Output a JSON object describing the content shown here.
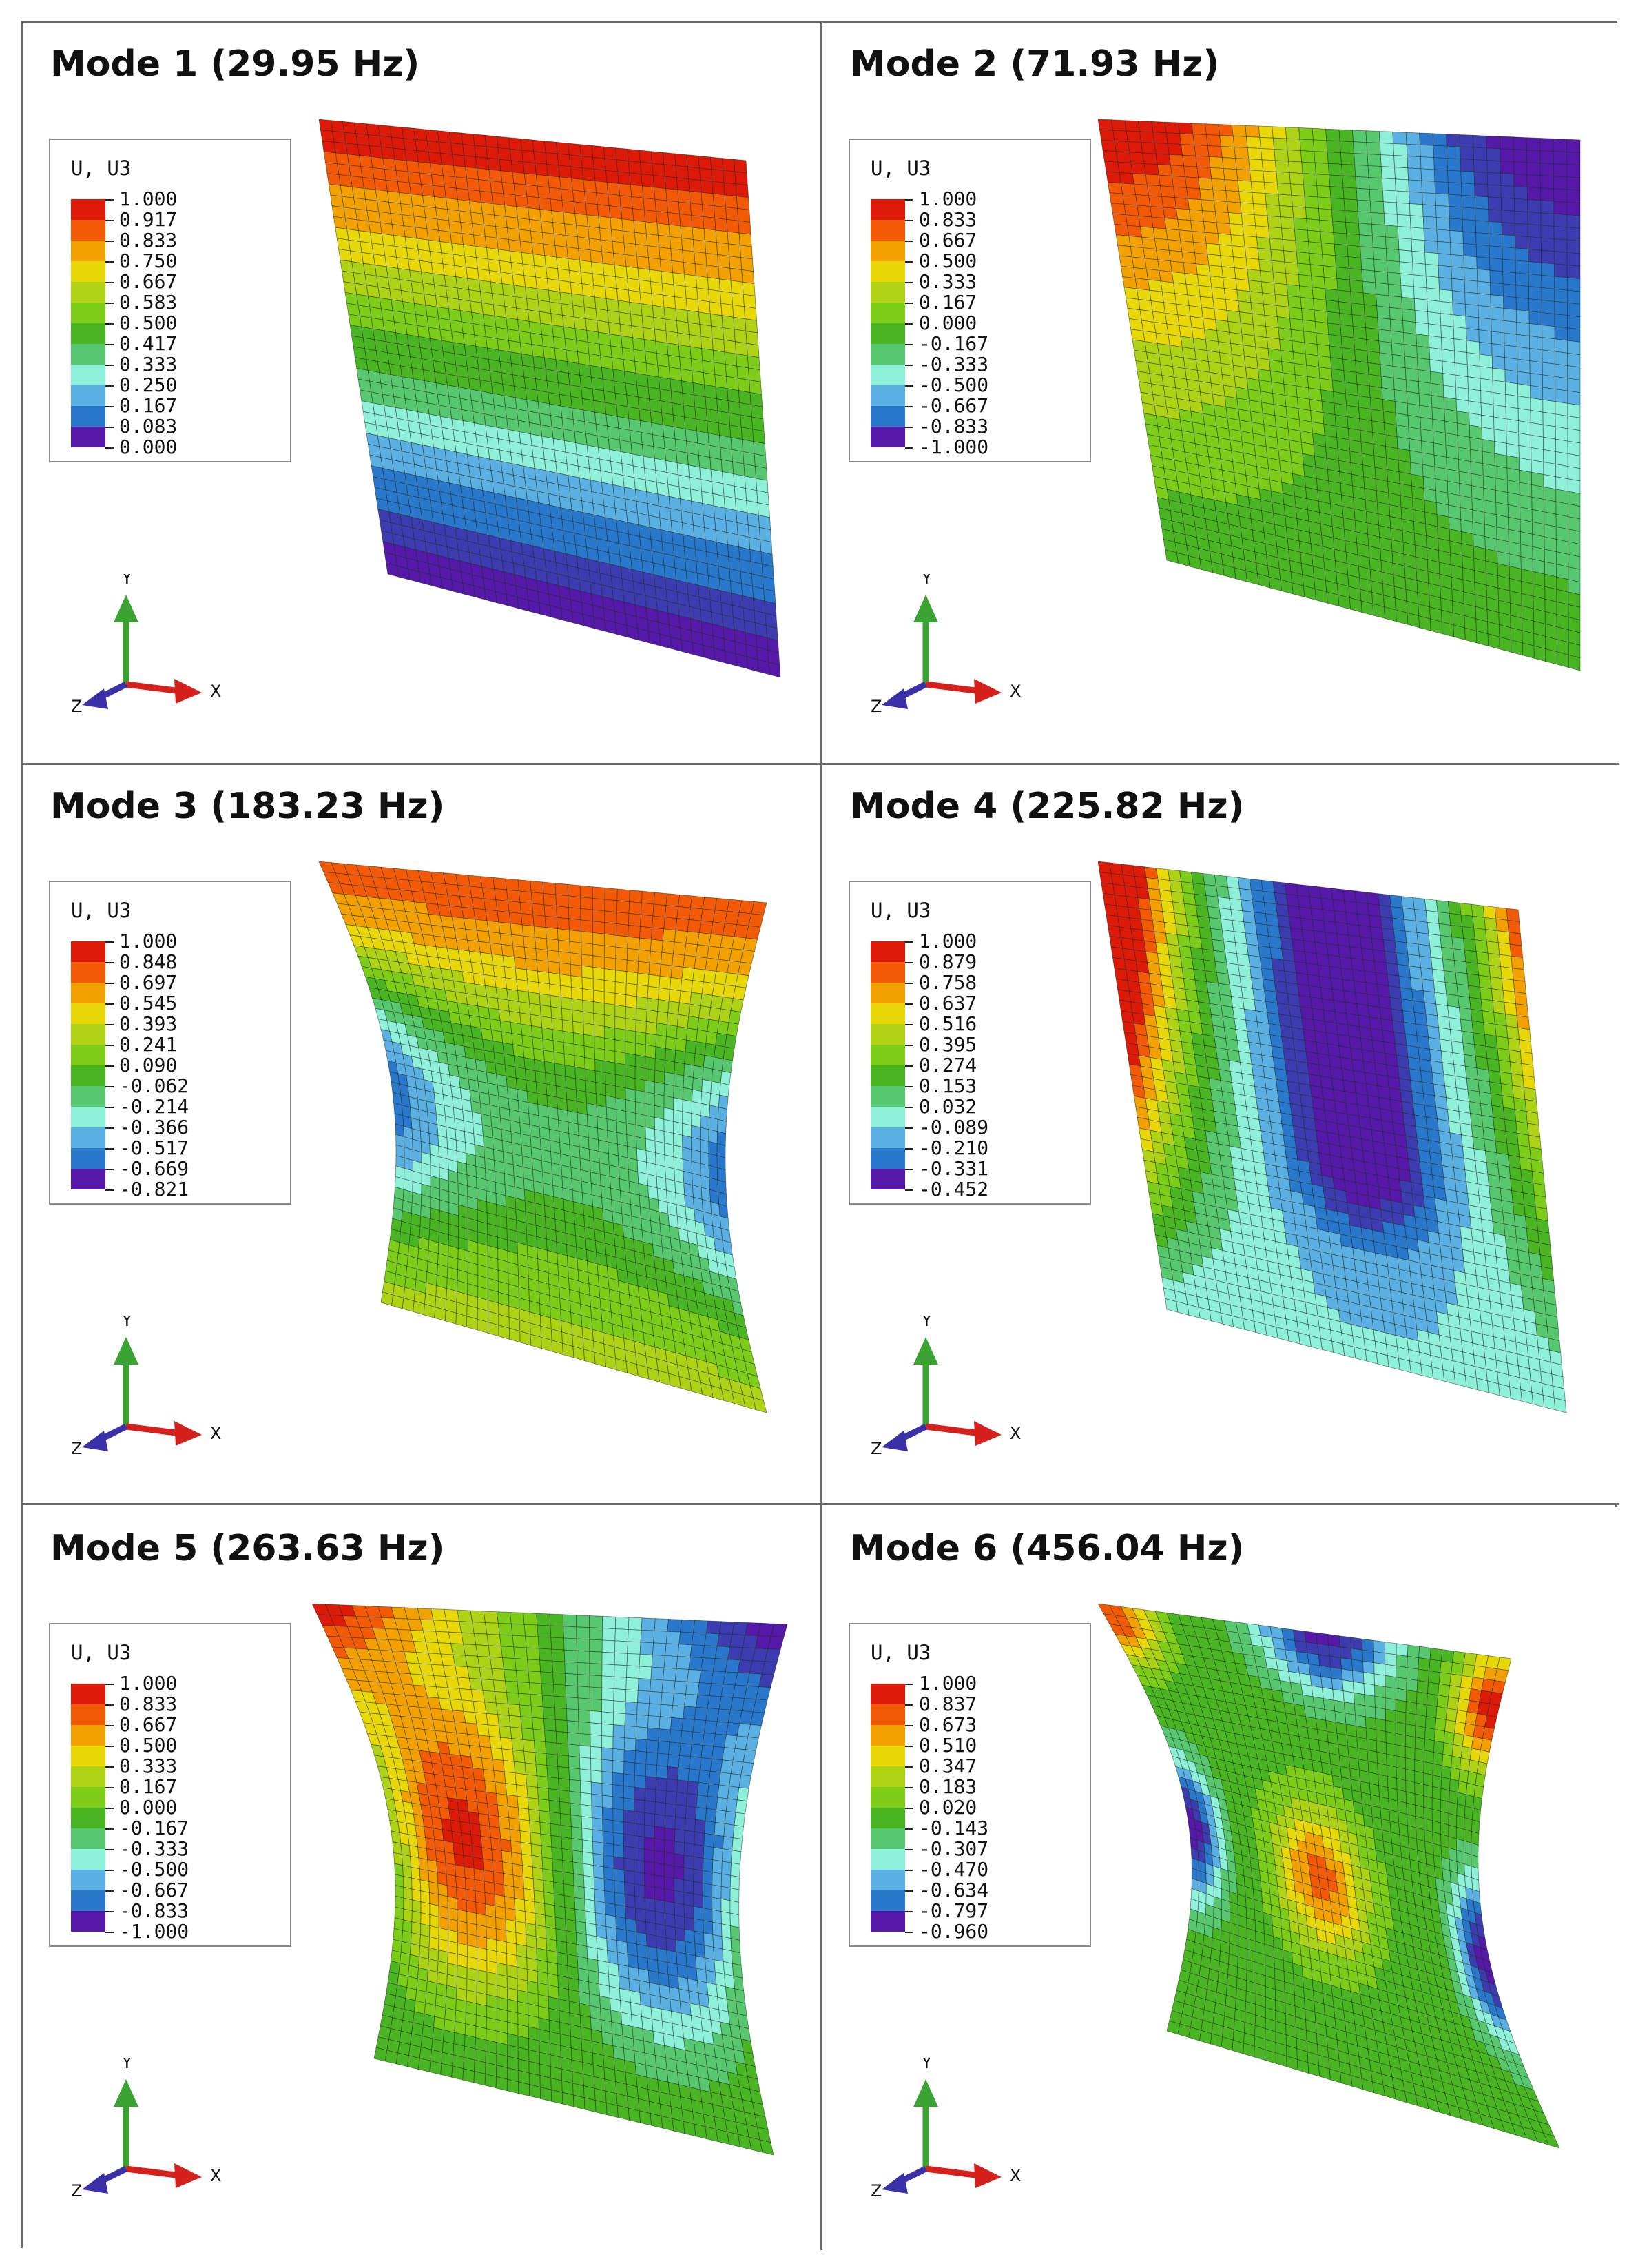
{
  "figure": {
    "panels": [
      {
        "title": "Mode 1 (29.95 Hz)",
        "legend_header": "U, U3",
        "legend_values": [
          "1.000",
          "0.917",
          "0.833",
          "0.750",
          "0.667",
          "0.583",
          "0.500",
          "0.417",
          "0.333",
          "0.250",
          "0.167",
          "0.083",
          "0.000"
        ],
        "shape": "mode1",
        "axes": {
          "x": "X",
          "y": "Y",
          "z": "Z"
        }
      },
      {
        "title": "Mode 2 (71.93 Hz)",
        "legend_header": "U, U3",
        "legend_values": [
          "1.000",
          "0.833",
          "0.667",
          "0.500",
          "0.333",
          "0.167",
          "0.000",
          "-0.167",
          "-0.333",
          "-0.500",
          "-0.667",
          "-0.833",
          "-1.000"
        ],
        "shape": "mode2",
        "axes": {
          "x": "X",
          "y": "Y",
          "z": "Z"
        }
      },
      {
        "title": "Mode 3 (183.23 Hz)",
        "legend_header": "U, U3",
        "legend_values": [
          "1.000",
          "0.848",
          "0.697",
          "0.545",
          "0.393",
          "0.241",
          "0.090",
          "-0.062",
          "-0.214",
          "-0.366",
          "-0.517",
          "-0.669",
          "-0.821"
        ],
        "shape": "mode3",
        "axes": {
          "x": "X",
          "y": "Y",
          "z": "Z"
        }
      },
      {
        "title": "Mode 4 (225.82 Hz)",
        "legend_header": "U, U3",
        "legend_values": [
          "1.000",
          "0.879",
          "0.758",
          "0.637",
          "0.516",
          "0.395",
          "0.274",
          "0.153",
          "0.032",
          "-0.089",
          "-0.210",
          "-0.331",
          "-0.452"
        ],
        "shape": "mode4",
        "axes": {
          "x": "X",
          "y": "Y",
          "z": "Z"
        }
      },
      {
        "title": "Mode 5 (263.63 Hz)",
        "legend_header": "U, U3",
        "legend_values": [
          "1.000",
          "0.833",
          "0.667",
          "0.500",
          "0.333",
          "0.167",
          "0.000",
          "-0.167",
          "-0.333",
          "-0.500",
          "-0.667",
          "-0.833",
          "-1.000"
        ],
        "shape": "mode5",
        "axes": {
          "x": "X",
          "y": "Y",
          "z": "Z"
        }
      },
      {
        "title": "Mode 6 (456.04 Hz)",
        "legend_header": "U, U3",
        "legend_values": [
          "1.000",
          "0.837",
          "0.673",
          "0.510",
          "0.347",
          "0.183",
          "0.020",
          "-0.143",
          "-0.307",
          "-0.470",
          "-0.634",
          "-0.797",
          "-0.960"
        ],
        "shape": "mode6",
        "axes": {
          "x": "X",
          "y": "Y",
          "z": "Z"
        }
      }
    ],
    "colormap": [
      "#dd1a08",
      "#f25a05",
      "#f2a100",
      "#e8d808",
      "#b0d214",
      "#7ccc18",
      "#4ab522",
      "#58c870",
      "#8ef0d8",
      "#5ab0e2",
      "#2a78cc",
      "#3c3cb0",
      "#5618a8"
    ]
  }
}
